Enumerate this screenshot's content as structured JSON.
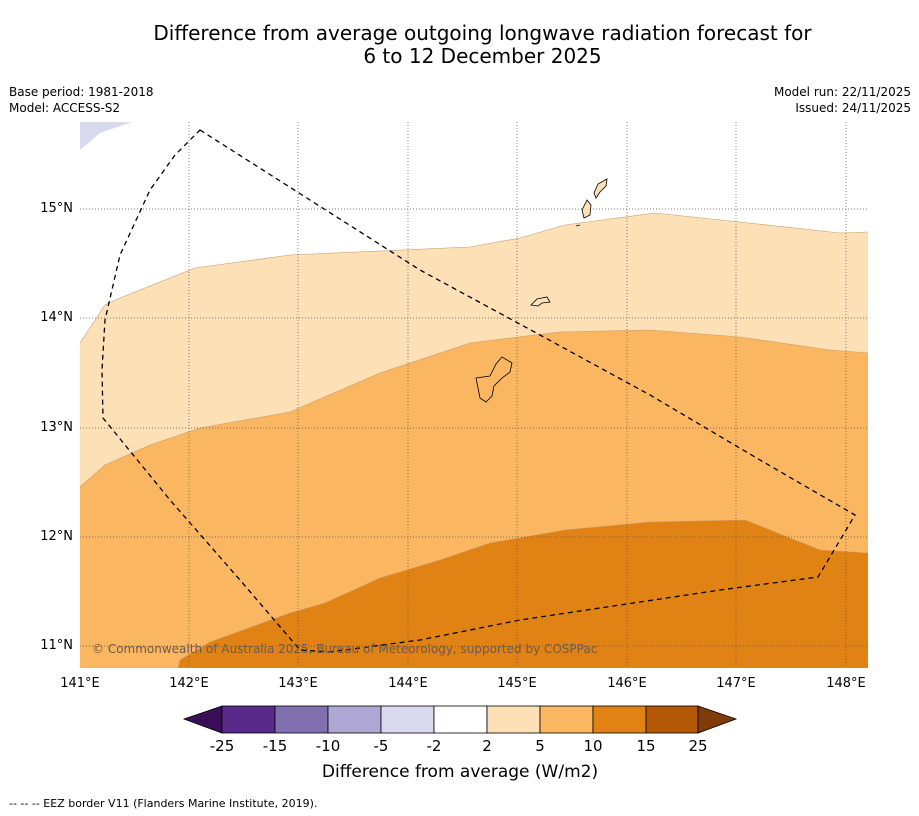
{
  "title_line1": "Difference from average outgoing longwave radiation forecast for",
  "title_line2": "6 to 12 December 2025",
  "base_period": "Base period: 1981-2018",
  "model": "Model: ACCESS-S2",
  "model_run": "Model run: 22/11/2025",
  "issued": "Issued: 24/11/2025",
  "latitudes": [
    "15°N",
    "14°N",
    "13°N",
    "12°N",
    "11°N"
  ],
  "longitudes": [
    "141°E",
    "142°E",
    "143°E",
    "144°E",
    "145°E",
    "146°E",
    "147°E",
    "148°E"
  ],
  "copyright": "© Commonwealth of Australia 2025, Bureau of Meteorology, supported by COSPPac",
  "colorbar": {
    "labels": [
      "-25",
      "-15",
      "-10",
      "-5",
      "-2",
      "2",
      "5",
      "10",
      "15",
      "25"
    ],
    "colors": [
      "#3b0f57",
      "#5a2a8a",
      "#8070b0",
      "#b0a8d4",
      "#d9d9ee",
      "#ffffff",
      "#fde0b5",
      "#fbb661",
      "#e08214",
      "#b35806",
      "#7f3b08"
    ],
    "title": "Difference from average (W/m2)"
  },
  "footnote": "--  --  -- EEZ border V11 (Flanders Marine Institute, 2019)."
}
